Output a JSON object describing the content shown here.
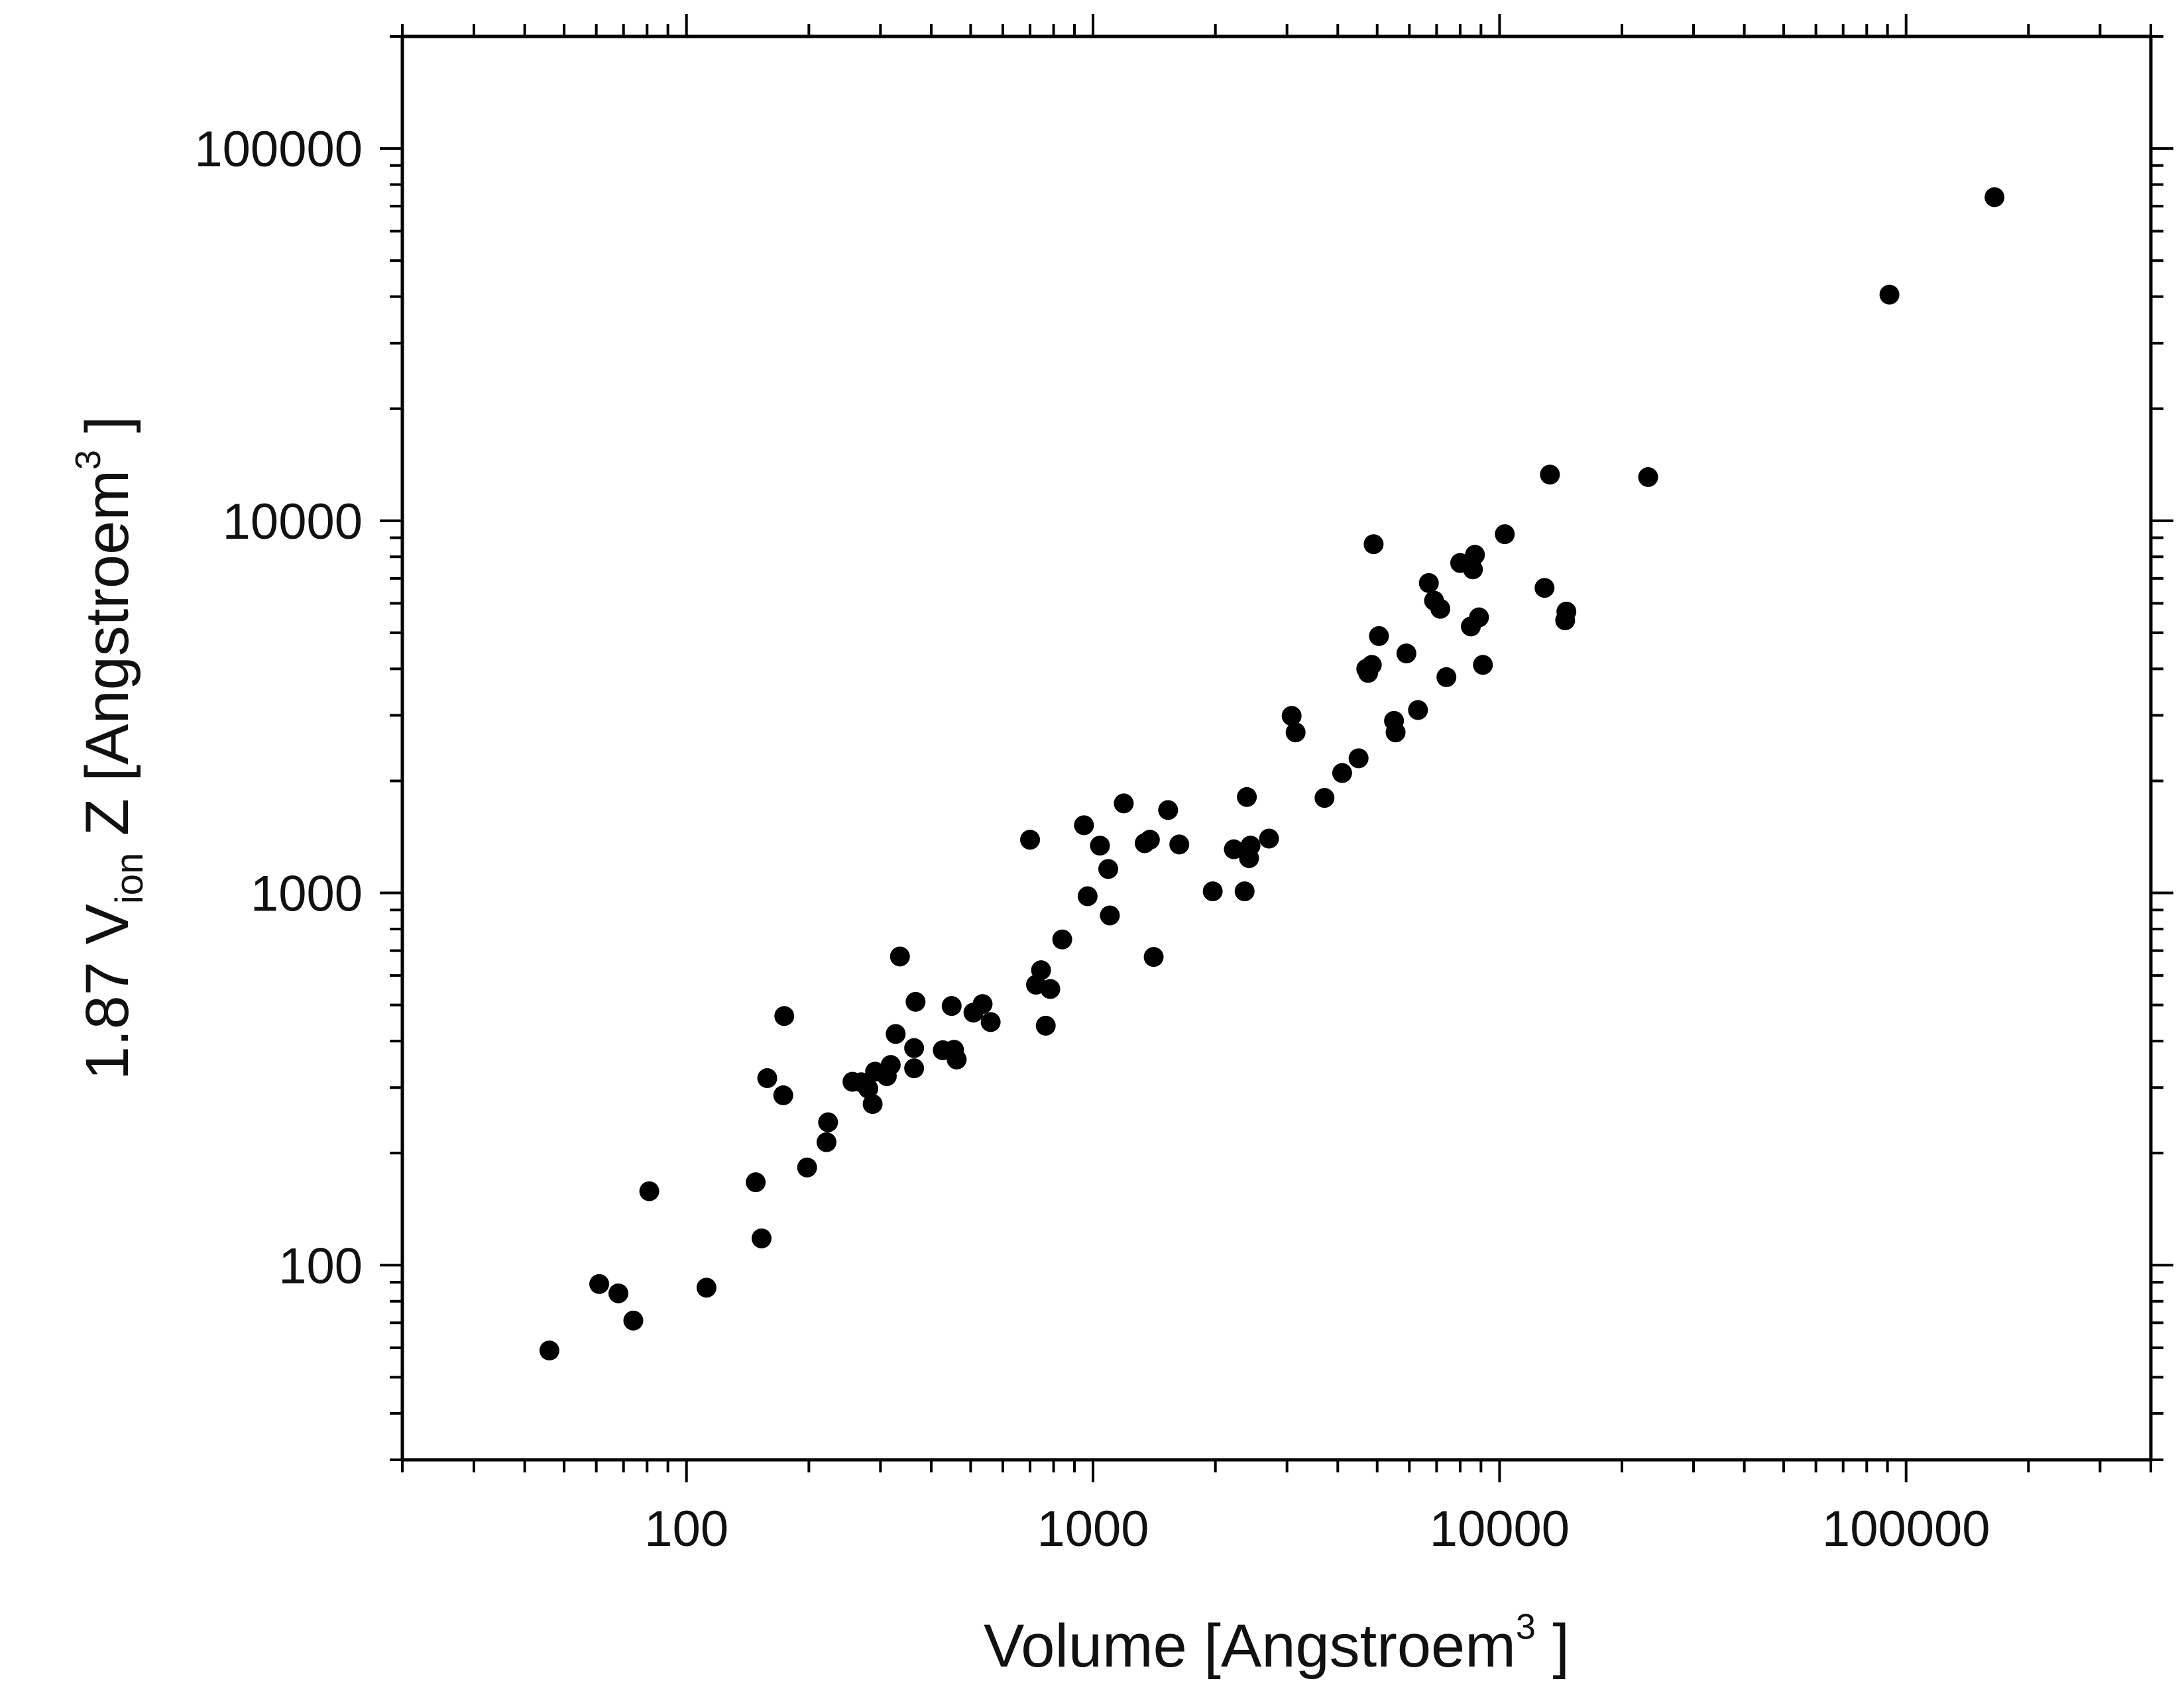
{
  "chart_data": {
    "type": "scatter",
    "xscale": "log",
    "yscale": "log",
    "xlim": [
      20,
      400000
    ],
    "ylim": [
      30,
      200000
    ],
    "grid": false,
    "legend": "none",
    "marker_color": "#000000",
    "xlabel": {
      "main": "Volume [Angstroem",
      "superscript": "3",
      "close": " ]"
    },
    "ylabel": {
      "prefix": "1.87 V",
      "subscript": "ion",
      "middle": " Z  [Angstroem",
      "superscript": "3",
      "close": " ]"
    },
    "xticks": [
      {
        "value": 100,
        "label": "100"
      },
      {
        "value": 1000,
        "label": "1000"
      },
      {
        "value": 10000,
        "label": "10000"
      },
      {
        "value": 100000,
        "label": "100000"
      }
    ],
    "yticks": [
      {
        "value": 100,
        "label": "100"
      },
      {
        "value": 1000,
        "label": "1000"
      },
      {
        "value": 10000,
        "label": "10000"
      },
      {
        "value": 100000,
        "label": "100000"
      }
    ],
    "points": [
      [
        46,
        59
      ],
      [
        61,
        89
      ],
      [
        68,
        84
      ],
      [
        74,
        71
      ],
      [
        81,
        158
      ],
      [
        112,
        87
      ],
      [
        148,
        167
      ],
      [
        153,
        118
      ],
      [
        158,
        318
      ],
      [
        173,
        286
      ],
      [
        174,
        467
      ],
      [
        198,
        183
      ],
      [
        221,
        214
      ],
      [
        223,
        242
      ],
      [
        256,
        311
      ],
      [
        269,
        310
      ],
      [
        280,
        298
      ],
      [
        287,
        271
      ],
      [
        291,
        331
      ],
      [
        311,
        322
      ],
      [
        318,
        345
      ],
      [
        327,
        418
      ],
      [
        335,
        675
      ],
      [
        363,
        383
      ],
      [
        363,
        338
      ],
      [
        366,
        510
      ],
      [
        427,
        378
      ],
      [
        449,
        497
      ],
      [
        455,
        379
      ],
      [
        462,
        357
      ],
      [
        508,
        477
      ],
      [
        535,
        503
      ],
      [
        560,
        450
      ],
      [
        700,
        1390
      ],
      [
        724,
        567
      ],
      [
        745,
        620
      ],
      [
        765,
        440
      ],
      [
        785,
        552
      ],
      [
        840,
        750
      ],
      [
        950,
        1520
      ],
      [
        970,
        980
      ],
      [
        1040,
        1340
      ],
      [
        1090,
        1160
      ],
      [
        1100,
        870
      ],
      [
        1190,
        1740
      ],
      [
        1340,
        1360
      ],
      [
        1380,
        1390
      ],
      [
        1410,
        673
      ],
      [
        1530,
        1670
      ],
      [
        1630,
        1350
      ],
      [
        1970,
        1010
      ],
      [
        2220,
        1310
      ],
      [
        2360,
        1010
      ],
      [
        2390,
        1810
      ],
      [
        2420,
        1240
      ],
      [
        2440,
        1340
      ],
      [
        2710,
        1400
      ],
      [
        3080,
        2990
      ],
      [
        3150,
        2700
      ],
      [
        3710,
        1800
      ],
      [
        4100,
        2100
      ],
      [
        4500,
        2300
      ],
      [
        4700,
        4000
      ],
      [
        4750,
        3900
      ],
      [
        4850,
        4100
      ],
      [
        4900,
        8650
      ],
      [
        5050,
        4900
      ],
      [
        5500,
        2900
      ],
      [
        5550,
        2700
      ],
      [
        5900,
        4400
      ],
      [
        6300,
        3100
      ],
      [
        6700,
        6800
      ],
      [
        6900,
        6100
      ],
      [
        7150,
        5800
      ],
      [
        7400,
        3800
      ],
      [
        8000,
        7700
      ],
      [
        8500,
        5200
      ],
      [
        8600,
        7400
      ],
      [
        8700,
        8100
      ],
      [
        8900,
        5500
      ],
      [
        9100,
        4100
      ],
      [
        10300,
        9200
      ],
      [
        12900,
        6600
      ],
      [
        13300,
        13300
      ],
      [
        14500,
        5400
      ],
      [
        14600,
        5700
      ],
      [
        23200,
        13100
      ],
      [
        91000,
        40500
      ],
      [
        165000,
        74000
      ]
    ]
  }
}
